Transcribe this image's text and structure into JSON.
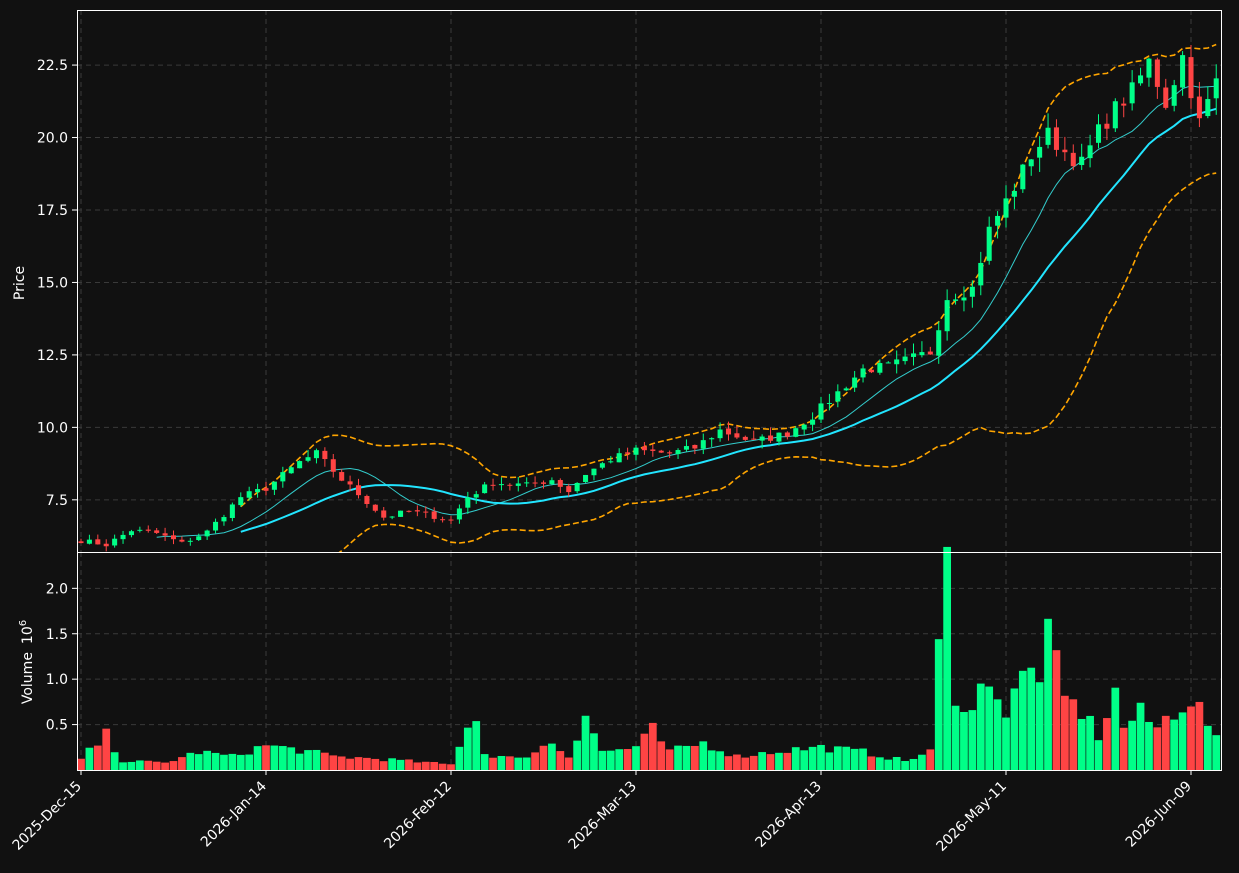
{
  "chart_data": {
    "type": "candlestick",
    "price_panel": {
      "ylabel": "Price",
      "ylim": [
        5.7,
        24.4
      ],
      "yticks": [
        "7.5",
        "10.0",
        "12.5",
        "15.0",
        "17.5",
        "20.0",
        "22.5"
      ],
      "ytick_values": [
        7.5,
        10.0,
        12.5,
        15.0,
        17.5,
        20.0,
        22.5
      ],
      "grid": true
    },
    "volume_panel": {
      "ylabel": "Volume",
      "exponent_label": "10",
      "exponent_power": "6",
      "ylim": [
        0,
        2.4
      ],
      "yticks": [
        "0.5",
        "1.0",
        "1.5",
        "2.0"
      ],
      "ytick_values": [
        0.5,
        1.0,
        1.5,
        2.0
      ],
      "grid": true
    },
    "xticks": [
      {
        "label": "2025-Dec-15",
        "index": 0
      },
      {
        "label": "2026-Jan-14",
        "index": 22
      },
      {
        "label": "2026-Feb-12",
        "index": 44
      },
      {
        "label": "2026-Mar-13",
        "index": 66
      },
      {
        "label": "2026-Apr-13",
        "index": 88
      },
      {
        "label": "2026-May-11",
        "index": 110
      },
      {
        "label": "2026-Jun-09",
        "index": 132
      }
    ],
    "n_bars": 136,
    "series": [
      {
        "kind": "candles"
      },
      {
        "kind": "sma_short"
      },
      {
        "kind": "sma_long"
      },
      {
        "kind": "bollinger_upper"
      },
      {
        "kind": "bollinger_lower"
      },
      {
        "kind": "volume"
      }
    ],
    "colors": {
      "up": "#00ff88",
      "down": "#ff4444",
      "sma_short": "#33cccc",
      "sma_long": "#22e5ff",
      "bollinger": "#ffa500",
      "grid": "#3a3a3a",
      "background": "#111111",
      "frame": "#ffffff"
    },
    "keypoints": [
      [
        0,
        6.1
      ],
      [
        3,
        5.95
      ],
      [
        6,
        6.45
      ],
      [
        9,
        6.35
      ],
      [
        12,
        6.0
      ],
      [
        15,
        6.4
      ],
      [
        19,
        7.6
      ],
      [
        22,
        7.9
      ],
      [
        26,
        8.8
      ],
      [
        28,
        9.1
      ],
      [
        31,
        8.2
      ],
      [
        33,
        7.7
      ],
      [
        36,
        6.9
      ],
      [
        39,
        7.1
      ],
      [
        41,
        7.0
      ],
      [
        44,
        6.8
      ],
      [
        46,
        7.6
      ],
      [
        49,
        8.1
      ],
      [
        53,
        8.0
      ],
      [
        56,
        8.2
      ],
      [
        58,
        7.8
      ],
      [
        60,
        8.4
      ],
      [
        63,
        8.9
      ],
      [
        66,
        9.2
      ],
      [
        70,
        9.1
      ],
      [
        73,
        9.3
      ],
      [
        76,
        9.9
      ],
      [
        80,
        9.5
      ],
      [
        84,
        9.8
      ],
      [
        87,
        10.4
      ],
      [
        90,
        11.2
      ],
      [
        93,
        12.0
      ],
      [
        96,
        12.1
      ],
      [
        99,
        12.4
      ],
      [
        101,
        12.6
      ],
      [
        103,
        14.5
      ],
      [
        106,
        14.8
      ],
      [
        108,
        16.8
      ],
      [
        111,
        18.3
      ],
      [
        113,
        19.4
      ],
      [
        115,
        20.1
      ],
      [
        117,
        19.5
      ],
      [
        119,
        19.1
      ],
      [
        121,
        20.2
      ],
      [
        123,
        21.0
      ],
      [
        125,
        21.6
      ],
      [
        127,
        22.6
      ],
      [
        129,
        21.2
      ],
      [
        131,
        22.8
      ],
      [
        133,
        20.5
      ],
      [
        135,
        21.9
      ]
    ],
    "volume_keypoints": [
      [
        0,
        0.12
      ],
      [
        3,
        0.38
      ],
      [
        5,
        0.1
      ],
      [
        10,
        0.08
      ],
      [
        14,
        0.2
      ],
      [
        18,
        0.15
      ],
      [
        22,
        0.27
      ],
      [
        26,
        0.22
      ],
      [
        30,
        0.15
      ],
      [
        36,
        0.12
      ],
      [
        44,
        0.06
      ],
      [
        46,
        0.52
      ],
      [
        47,
        0.55
      ],
      [
        48,
        0.18
      ],
      [
        52,
        0.12
      ],
      [
        56,
        0.3
      ],
      [
        58,
        0.15
      ],
      [
        60,
        0.63
      ],
      [
        62,
        0.2
      ],
      [
        66,
        0.25
      ],
      [
        68,
        0.44
      ],
      [
        70,
        0.2
      ],
      [
        74,
        0.3
      ],
      [
        78,
        0.15
      ],
      [
        84,
        0.22
      ],
      [
        88,
        0.25
      ],
      [
        93,
        0.2
      ],
      [
        98,
        0.1
      ],
      [
        101,
        0.2
      ],
      [
        102,
        1.33
      ],
      [
        103,
        2.2
      ],
      [
        104,
        0.88
      ],
      [
        106,
        0.63
      ],
      [
        108,
        1.1
      ],
      [
        110,
        0.6
      ],
      [
        112,
        1.02
      ],
      [
        114,
        1.12
      ],
      [
        115,
        1.42
      ],
      [
        117,
        0.78
      ],
      [
        119,
        0.65
      ],
      [
        121,
        0.38
      ],
      [
        123,
        0.84
      ],
      [
        124,
        0.48
      ],
      [
        126,
        0.62
      ],
      [
        128,
        0.46
      ],
      [
        130,
        0.66
      ],
      [
        132,
        0.8
      ],
      [
        134,
        0.52
      ],
      [
        135,
        0.32
      ]
    ]
  }
}
